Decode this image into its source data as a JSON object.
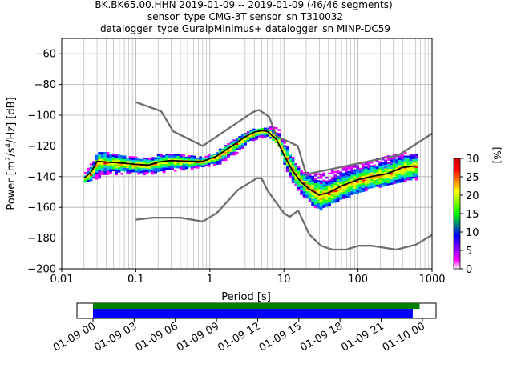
{
  "title": {
    "line1": "BK.BK65.00.HHN   2019-01-09 -- 2019-01-09  (46/46 segments)",
    "line2": "sensor_type CMG-3T sensor_sn T310032",
    "line3": "datalogger_type GuralpMinimus+ datalogger_sn MINP-DC59"
  },
  "chart_data": [
    {
      "type": "heatmap",
      "name": "ppsd",
      "xlabel": "Period [s]",
      "ylabel": "Power [m²/s⁴/Hz] [dB]",
      "x_scale": "log",
      "xlim": [
        0.01,
        1000
      ],
      "ylim": [
        -200,
        -50
      ],
      "x_tick_labels": [
        "0.01",
        "0.1",
        "1",
        "10",
        "100",
        "1000"
      ],
      "y_ticks": [
        -200,
        -180,
        -160,
        -140,
        -120,
        -100,
        -80,
        -60
      ],
      "grid": true,
      "colorbar": {
        "label": "[%]",
        "range": [
          0,
          30
        ],
        "ticks": [
          0,
          5,
          10,
          15,
          20,
          25,
          30
        ],
        "colormap": [
          "#ffffff",
          "#ff00ff",
          "#0000ff",
          "#00ff00",
          "#ffff00",
          "#ff0000",
          "#cc0000"
        ]
      },
      "nhnm": {
        "period": [
          0.1,
          0.22,
          0.32,
          0.8,
          3.8,
          4.6,
          6.3,
          7.9,
          15.4,
          20,
          354.8,
          1000
        ],
        "db": [
          -91.5,
          -97.4,
          -110.5,
          -120,
          -98,
          -96.5,
          -101,
          -113.5,
          -120,
          -138.5,
          -126,
          -112
        ]
      },
      "nlnm": {
        "period": [
          0.1,
          0.17,
          0.4,
          0.8,
          1.24,
          2.4,
          4.3,
          5,
          6,
          10,
          12,
          15.6,
          21.9,
          31.6,
          45,
          70,
          101,
          154,
          328,
          600,
          1000
        ],
        "db": [
          -168,
          -166.7,
          -166.7,
          -169.2,
          -163.7,
          -148.6,
          -141.1,
          -141.1,
          -149,
          -163.8,
          -166.2,
          -162.1,
          -177.5,
          -185,
          -187.5,
          -187.5,
          -185,
          -185,
          -187.5,
          -184.4,
          -178
        ]
      },
      "mean": {
        "period": [
          0.02,
          0.025,
          0.03,
          0.04,
          0.06,
          0.1,
          0.15,
          0.2,
          0.3,
          0.5,
          0.8,
          1.2,
          2,
          3,
          4,
          5,
          6,
          8,
          10,
          13,
          17,
          22,
          30,
          40,
          60,
          100,
          150,
          250,
          400,
          600
        ],
        "db": [
          -141,
          -137,
          -130,
          -130.5,
          -131,
          -132,
          -132.5,
          -130.5,
          -129.5,
          -130,
          -130,
          -127,
          -120,
          -114,
          -111,
          -110,
          -110.5,
          -116,
          -126,
          -136,
          -143.5,
          -148,
          -152,
          -150.5,
          -146,
          -142,
          -140,
          -138,
          -134,
          -133
        ]
      },
      "band": {
        "period": [
          0.02,
          0.03,
          0.04,
          0.06,
          0.1,
          0.15,
          0.2,
          0.3,
          0.5,
          0.8,
          1.2,
          2,
          3,
          4,
          5,
          6,
          8,
          10,
          13,
          17,
          22,
          30,
          40,
          60,
          100,
          150,
          250,
          400,
          600
        ],
        "upper": [
          -137,
          -124,
          -124,
          -126,
          -127,
          -128,
          -125,
          -125,
          -126,
          -127,
          -123,
          -116,
          -111,
          -108,
          -107,
          -107,
          -108,
          -117,
          -128,
          -137,
          -137,
          -138,
          -136,
          -134,
          -131,
          -129,
          -126,
          -124,
          -124
        ],
        "lower": [
          -143,
          -141,
          -138,
          -138,
          -138,
          -138,
          -137,
          -136,
          -135,
          -133,
          -132,
          -126,
          -119,
          -115,
          -114,
          -114,
          -118,
          -133,
          -145,
          -152,
          -158,
          -161,
          -158,
          -154,
          -150,
          -147,
          -145,
          -143,
          -142
        ]
      }
    },
    {
      "type": "bar",
      "name": "data-coverage",
      "x_tick_labels": [
        "01-09 00",
        "01-09 03",
        "01-09 06",
        "01-09 09",
        "01-09 12",
        "01-09 15",
        "01-09 18",
        "01-09 21",
        "01-10 00"
      ],
      "series": [
        {
          "color": "#008000",
          "start_hour": 0,
          "end_hour": 23.8
        },
        {
          "color": "#0000ff",
          "start_hour": 0,
          "end_hour": 23.3
        }
      ]
    }
  ]
}
